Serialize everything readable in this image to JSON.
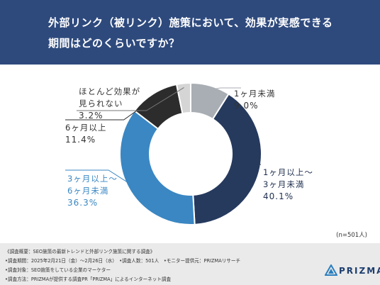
{
  "header": {
    "title_line1": "外部リンク（被リンク）施策において、効果が実感できる",
    "title_line2": "期間はどのくらいですか？"
  },
  "chart_data": {
    "type": "pie",
    "donut": true,
    "title": "外部リンク（被リンク）施策において、効果が実感できる期間はどのくらいですか？",
    "categories": [
      "1ヶ月未満",
      "1ヶ月以上〜3ヶ月未満",
      "3ヶ月以上〜6ヶ月未満",
      "6ヶ月以上",
      "ほとんど効果が見られない"
    ],
    "values": [
      9.0,
      40.1,
      36.3,
      11.4,
      3.2
    ],
    "unit": "%",
    "colors": [
      "#a9aeb4",
      "#263a5e",
      "#3a87c3",
      "#2c2c2c",
      "#d5d5d5"
    ]
  },
  "labels": [
    {
      "line1": "1ヶ月未満",
      "line2": "",
      "pct": "9.0%",
      "color": "#333333"
    },
    {
      "line1": "1ヶ月以上〜",
      "line2": "3ヶ月未満",
      "pct": "40.1%",
      "color": "#1f2f4f"
    },
    {
      "line1": "3ヶ月以上〜",
      "line2": "6ヶ月未満",
      "pct": "36.3%",
      "color": "#3a87c3"
    },
    {
      "line1": "6ヶ月以上",
      "line2": "",
      "pct": "11.4%",
      "color": "#333333"
    },
    {
      "line1": "ほとんど効果が",
      "line2": "見られない",
      "pct": "3.2%",
      "color": "#333333"
    }
  ],
  "sample_note": "(n=501人)",
  "footer": {
    "line1": "《調査概要：SEO施策の最新トレンドと外部リンク施策に関する調査》",
    "line2": "•調査期間：2025年2月21日（金）〜2月26日（水）　•調査人数：501人　•モニター提供元：PRIZMAリサーチ",
    "line3": "•調査対象：SEO施策をしている企業のマーケター",
    "line4": "•調査方法：PRIZMAが提供する調査PR「PRIZMA」によるインターネット調査"
  },
  "logo": {
    "text": "PRIZMA",
    "icon": "prizma-triangle-icon"
  }
}
